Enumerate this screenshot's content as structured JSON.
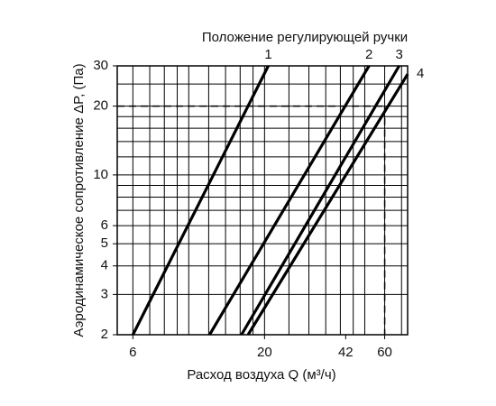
{
  "chart_data": {
    "type": "line",
    "title": "Положение регулирующей ручки",
    "xlabel": "Расход воздуха Q (м³/ч)",
    "ylabel": "Аэродинамическое сопротивление ΔP, (Па)",
    "xscale": "log",
    "yscale": "log",
    "xlim": [
      5.2,
      74
    ],
    "ylim": [
      2,
      30
    ],
    "xticks": [
      6,
      20,
      42,
      60
    ],
    "yticks": [
      2,
      3,
      4,
      5,
      6,
      10,
      20,
      30
    ],
    "xgrid": [
      6,
      7,
      8,
      9,
      10,
      12,
      14,
      16,
      18,
      20,
      25,
      30,
      35,
      40,
      45,
      50,
      60,
      70
    ],
    "ygrid": [
      2,
      3,
      4,
      5,
      6,
      7,
      8,
      9,
      10,
      12,
      14,
      16,
      18,
      20,
      25,
      30
    ],
    "reference": {
      "y": 20,
      "x": 60
    },
    "series": [
      {
        "name": "1",
        "color": "#000000",
        "x": [
          6,
          20.7
        ],
        "values": [
          2,
          30
        ]
      },
      {
        "name": "2",
        "color": "#000000",
        "x": [
          12.1,
          52
        ],
        "values": [
          2,
          30
        ]
      },
      {
        "name": "3",
        "color": "#000000",
        "x": [
          16.2,
          68.5
        ],
        "values": [
          2,
          30
        ]
      },
      {
        "name": "4",
        "color": "#000000",
        "x": [
          17.2,
          74
        ],
        "values": [
          2,
          27.6
        ]
      }
    ]
  }
}
